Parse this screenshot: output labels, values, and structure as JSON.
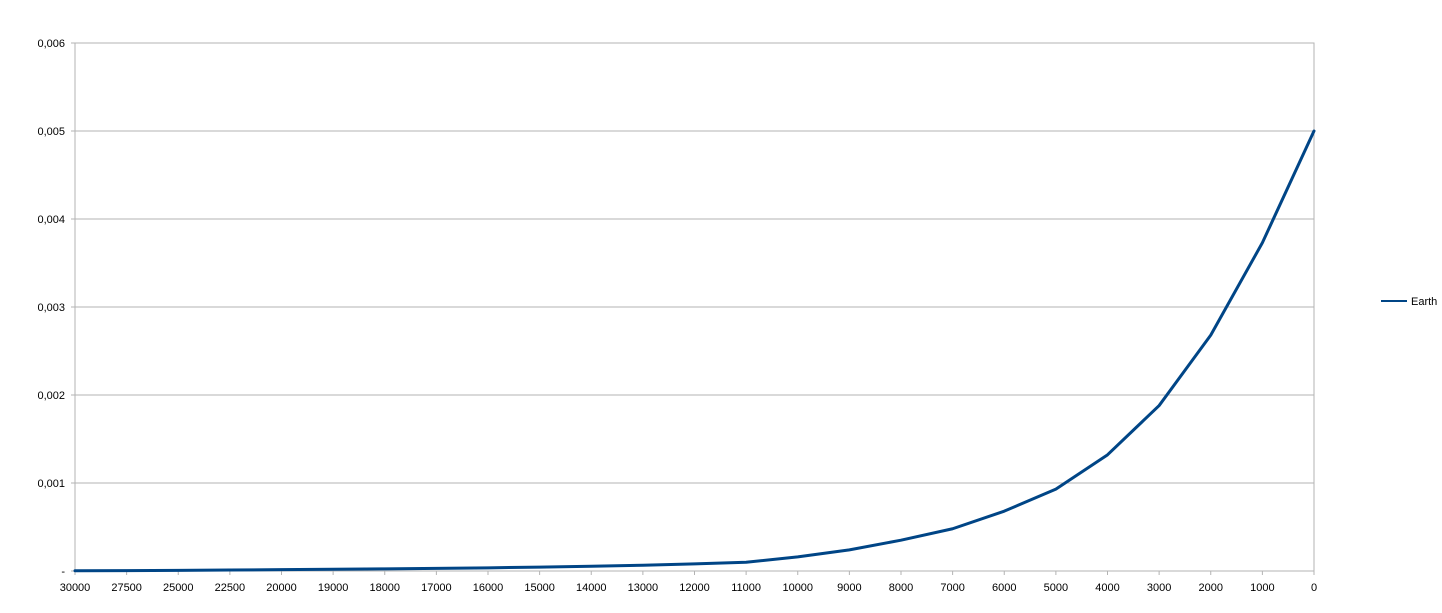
{
  "chart_data": {
    "type": "line",
    "title": "",
    "xlabel": "",
    "ylabel": "",
    "x_categories": [
      "30000",
      "27500",
      "25000",
      "22500",
      "20000",
      "19000",
      "18000",
      "17000",
      "16000",
      "15000",
      "14000",
      "13000",
      "12000",
      "11000",
      "10000",
      "9000",
      "8000",
      "7000",
      "6000",
      "5000",
      "4000",
      "3000",
      "2000",
      "1000",
      "0"
    ],
    "y_ticks": [
      "-",
      "0,001",
      "0,002",
      "0,003",
      "0,004",
      "0,005",
      "0,006"
    ],
    "ylim": [
      0,
      0.006
    ],
    "grid": true,
    "legend_position": "right",
    "series": [
      {
        "name": "Earth",
        "color": "#004586",
        "values": [
          3.2e-06,
          4.8e-06,
          7.2e-06,
          1.08e-05,
          1.62e-05,
          1.98e-05,
          2.42e-05,
          2.96e-05,
          3.62e-05,
          4.42e-05,
          5.4e-05,
          6.6e-05,
          8.06e-05,
          0.0001,
          0.00016,
          0.00024,
          0.00035,
          0.00048,
          0.00068,
          0.00093,
          0.00132,
          0.00188,
          0.00268,
          0.00373,
          0.005
        ]
      }
    ]
  }
}
